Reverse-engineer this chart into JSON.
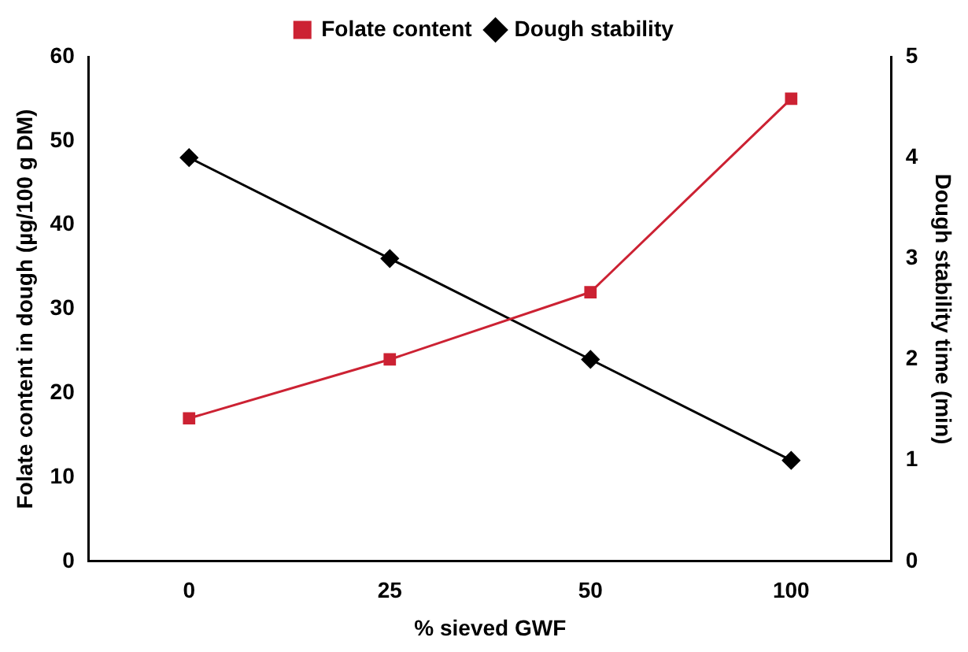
{
  "chart_data": {
    "type": "line",
    "xlabel": "% sieved GWF",
    "ylabel": "Folate content in dough (µg/100 g DM)",
    "y2label": "Dough stability time (min)",
    "categories": [
      "0",
      "25",
      "50",
      "100"
    ],
    "series": [
      {
        "name": "Folate content",
        "color": "#cc2233",
        "values": [
          17,
          24,
          32,
          55
        ],
        "marker": "square"
      },
      {
        "name": "Dough stability",
        "color": "#000000",
        "values": [
          4,
          3,
          2,
          1
        ],
        "axis": "y2",
        "marker": "diamond"
      }
    ],
    "ylim": [
      0,
      60
    ],
    "yticks": [
      0,
      10,
      20,
      30,
      40,
      50,
      60
    ],
    "y2lim": [
      0,
      5
    ],
    "y2ticks": [
      0,
      1,
      2,
      3,
      4,
      5
    ],
    "grid": false,
    "legend": "top",
    "line_style": "solid"
  }
}
